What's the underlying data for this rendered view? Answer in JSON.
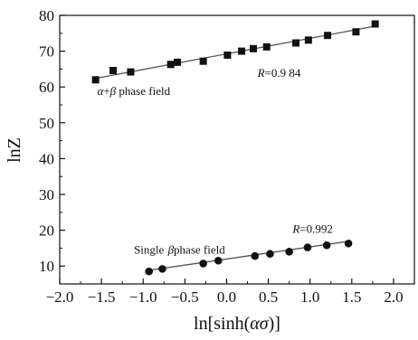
{
  "chart_data": {
    "type": "scatter",
    "xlabel": "ln[sinh(ασ)]",
    "ylabel": "lnZ",
    "xlim": [
      -2.0,
      2.25
    ],
    "ylim": [
      5,
      80
    ],
    "x_ticks": [
      -2.0,
      -1.5,
      -1.0,
      -0.5,
      0.0,
      0.5,
      1.0,
      1.5,
      2.0
    ],
    "x_tick_labels": [
      "−2.0",
      "−1.5",
      "−1.0",
      "−0.5",
      "0.0",
      "0.5",
      "1.0",
      "1.5",
      "2.0"
    ],
    "y_ticks": [
      10,
      20,
      30,
      40,
      50,
      60,
      70,
      80
    ],
    "y_tick_labels": [
      "10",
      "20",
      "30",
      "40",
      "50",
      "60",
      "70",
      "80"
    ],
    "grid": false,
    "series": [
      {
        "marker": "square",
        "color": "#111111",
        "fit_color": "#555555",
        "x": [
          -1.57,
          -1.36,
          -1.15,
          -0.67,
          -0.59,
          -0.28,
          0.01,
          0.18,
          0.32,
          0.48,
          0.83,
          0.98,
          1.21,
          1.55,
          1.78
        ],
        "y": [
          62.0,
          64.6,
          64.2,
          66.3,
          66.9,
          67.2,
          68.9,
          70.0,
          70.7,
          71.2,
          72.3,
          73.1,
          74.4,
          75.4,
          77.6
        ],
        "fit": {
          "x": [
            -1.57,
            1.78
          ],
          "y": [
            62.4,
            77.0
          ]
        }
      },
      {
        "marker": "circle",
        "color": "#111111",
        "fit_color": "#555555",
        "x": [
          -0.93,
          -0.77,
          -0.28,
          -0.1,
          0.34,
          0.52,
          0.75,
          0.97,
          1.2,
          1.46
        ],
        "y": [
          8.5,
          9.2,
          10.7,
          11.5,
          12.8,
          13.4,
          14.0,
          15.2,
          15.8,
          16.3
        ],
        "fit": {
          "x": [
            -0.93,
            1.46
          ],
          "y": [
            8.8,
            16.9
          ]
        }
      }
    ],
    "annotations": [
      {
        "text": "α+β phase field",
        "x": -1.55,
        "y": 57.8
      },
      {
        "text": "R=0.9 84",
        "x": 0.37,
        "y": 62.8,
        "italic_prefix": "R"
      },
      {
        "text": "Single β phase field",
        "x": -1.11,
        "y": 13.4
      },
      {
        "text": "R=0.992",
        "x": 0.79,
        "y": 19.3,
        "italic_prefix": "R"
      }
    ]
  },
  "labels": {
    "xlabel_prefix": "ln[sinh(",
    "xlabel_italic": "ασ",
    "xlabel_suffix": ")]",
    "ylabel": "lnZ",
    "ann1_alpha": "α",
    "ann1_plus": "+",
    "ann1_beta": "β",
    "ann1_rest": " phase field",
    "ann2_r": "R",
    "ann2_value": "=0.9 84",
    "ann3_prefix": "Single ",
    "ann3_beta": "β",
    "ann3_rest": "phase field",
    "ann4_r": "R",
    "ann4_value": "=0.992"
  }
}
